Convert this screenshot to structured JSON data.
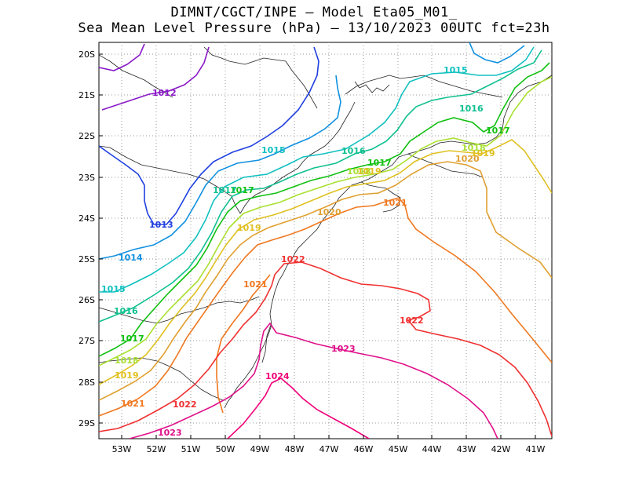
{
  "title_line1": "DIMNT/CGCT/INPE –  Model Eta05_M01_",
  "title_line2": "Sea Mean Level Pressure (hPa) – 13/10/2023 00UTC fct=23h",
  "y_ticks": [
    "20S",
    "21S",
    "22S",
    "23S",
    "24S",
    "25S",
    "26S",
    "27S",
    "28S",
    "29S"
  ],
  "x_ticks": [
    "53W",
    "52W",
    "51W",
    "50W",
    "49W",
    "48W",
    "47W",
    "46W",
    "45W",
    "44W",
    "43W",
    "42W",
    "41W"
  ],
  "contour_colors": {
    "1012": "#8a18c8",
    "1013": "#2040e0",
    "1014": "#1090e0",
    "1015": "#10c0c0",
    "1016": "#10c090",
    "1017": "#10c010",
    "1018": "#a8e030",
    "1019": "#e0c020",
    "1020": "#e0a030",
    "1021": "#f07820",
    "1022": "#f03030",
    "1023": "#e0108a",
    "1024": "#f00078"
  },
  "contour_labels": [
    "1012",
    "1013",
    "1014",
    "1015",
    "1016",
    "1017",
    "1018",
    "1019",
    "1020",
    "1021",
    "1022",
    "1023",
    "1024"
  ],
  "extra_labels": {
    "l1015b": "1015",
    "l1015c": "1015",
    "l1016b": "1016",
    "l1016c": "1016",
    "l1017b": "1017",
    "l1017c": "1017",
    "l1017d": "1017",
    "l1018b": "1018",
    "l1019b": "1019",
    "l1019c": "1019",
    "l1019d": "1019",
    "l1020b": "1020",
    "l1020c": "1020",
    "l1021b": "1021",
    "l1021c": "1021",
    "l1022b": "1022",
    "l1022c": "1022",
    "l1023b": "1023",
    "l1018c": "1018",
    "l1017e": "1017"
  }
}
